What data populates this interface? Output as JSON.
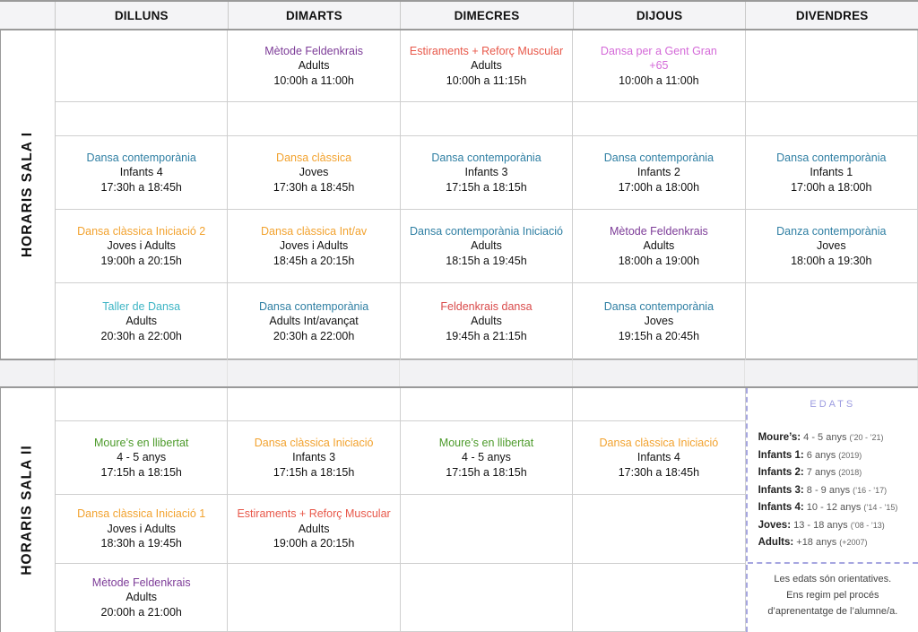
{
  "days": [
    "DILLUNS",
    "DIMARTS",
    "DIMECRES",
    "DIJOUS",
    "DIVENDRES"
  ],
  "sala1": {
    "label": "HORARIS  SALA  I",
    "rows": [
      [
        null,
        {
          "title": "Mètode Feldenkrais",
          "color": "purple",
          "group": "Adults",
          "hours": "10:00h a 11:00h"
        },
        {
          "title": "Estiraments + Reforç Muscular",
          "color": "red",
          "group": "Adults",
          "hours": "10:00h a 11:15h"
        },
        {
          "title": "Dansa per a Gent Gran +65",
          "color": "pink",
          "group": "",
          "hours": "10:00h a 11:00h"
        },
        null
      ],
      [
        null,
        null,
        null,
        null,
        null
      ],
      [
        {
          "title": "Dansa contemporània",
          "color": "blue",
          "group": "Infants 4",
          "hours": "17:30h a 18:45h"
        },
        {
          "title": "Dansa clàssica",
          "color": "orange",
          "group": "Joves",
          "hours": "17:30h a 18:45h"
        },
        {
          "title": "Dansa contemporània",
          "color": "blue",
          "group": "Infants 3",
          "hours": "17:15h a 18:15h"
        },
        {
          "title": "Dansa contemporània",
          "color": "blue",
          "group": "Infants 2",
          "hours": "17:00h a 18:00h"
        },
        {
          "title": "Dansa contemporània",
          "color": "blue",
          "group": "Infants 1",
          "hours": "17:00h a 18:00h"
        }
      ],
      [
        {
          "title": "Dansa clàssica Iniciació 2",
          "color": "orange",
          "group": "Joves i Adults",
          "hours": "19:00h a 20:15h"
        },
        {
          "title": "Dansa clàssica Int/av",
          "color": "orange",
          "group": "Joves i Adults",
          "hours": "18:45h a 20:15h"
        },
        {
          "title": "Dansa contemporània Iniciació",
          "color": "blue",
          "group": "Adults",
          "hours": "18:15h a 19:45h"
        },
        {
          "title": "Mètode Feldenkrais",
          "color": "purple",
          "group": "Adults",
          "hours": "18:00h a 19:00h"
        },
        {
          "title": "Danza contemporània",
          "color": "blue",
          "group": "Joves",
          "hours": "18:00h a 19:30h"
        }
      ],
      [
        {
          "title": "Taller de Dansa",
          "color": "teal",
          "group": "Adults",
          "hours": "20:30h a 22:00h"
        },
        {
          "title": "Dansa contemporània",
          "color": "blue",
          "group": "Adults Int/avançat",
          "hours": "20:30h a 22:00h"
        },
        {
          "title": "Feldenkrais dansa",
          "color": "crimson",
          "group": "Adults",
          "hours": "19:45h a 21:15h"
        },
        {
          "title": "Dansa contemporània",
          "color": "blue",
          "group": "Joves",
          "hours": "19:15h a 20:45h"
        },
        null
      ]
    ]
  },
  "sala2": {
    "label": "HORARIS  SALA  II",
    "rows": [
      [
        null,
        null,
        null,
        null
      ],
      [
        {
          "title": "Moure’s en llibertat",
          "color": "green",
          "group": "4 - 5 anys",
          "hours": "17:15h a 18:15h"
        },
        {
          "title": "Dansa clàssica Iniciació",
          "color": "orange",
          "group": "Infants 3",
          "hours": "17:15h a 18:15h"
        },
        {
          "title": "Moure’s en llibertat",
          "color": "green",
          "group": "4 - 5 anys",
          "hours": "17:15h a 18:15h"
        },
        {
          "title": "Dansa clàssica Iniciació",
          "color": "orange",
          "group": "Infants 4",
          "hours": "17:30h a 18:45h"
        }
      ],
      [
        {
          "title": "Dansa clàssica Iniciació 1",
          "color": "orange",
          "group": "Joves i Adults",
          "hours": "18:30h a 19:45h"
        },
        {
          "title": "Estiraments + Reforç Muscular",
          "color": "red",
          "group": "Adults",
          "hours": "19:00h a 20:15h"
        },
        null,
        null
      ],
      [
        {
          "title": "Mètode Feldenkrais",
          "color": "purple",
          "group": "Adults",
          "hours": "20:00h a 21:00h"
        },
        null,
        null,
        null
      ]
    ]
  },
  "edats": {
    "title": "EDATS",
    "items": [
      {
        "label": "Moure’s:",
        "range": "4 - 5 anys",
        "years": "(’20 - ’21)"
      },
      {
        "label": "Infants 1:",
        "range": "6 anys",
        "years": "(2019)"
      },
      {
        "label": "Infants 2:",
        "range": "7 anys",
        "years": "(2018)"
      },
      {
        "label": "Infants 3:",
        "range": "8 - 9 anys",
        "years": "(’16 - ’17)"
      },
      {
        "label": "Infants 4:",
        "range": "10 - 12 anys",
        "years": "(’14 - ’15)"
      },
      {
        "label": "Joves:",
        "range": "13 - 18 anys",
        "years": "(’08 - ’13)"
      },
      {
        "label": "Adults:",
        "range": "+18 anys",
        "years": "(+2007)"
      }
    ],
    "note": [
      "Les edats són orientatives.",
      "Ens regim pel procés",
      "d’aprenentatge de l’alumne/a."
    ]
  }
}
